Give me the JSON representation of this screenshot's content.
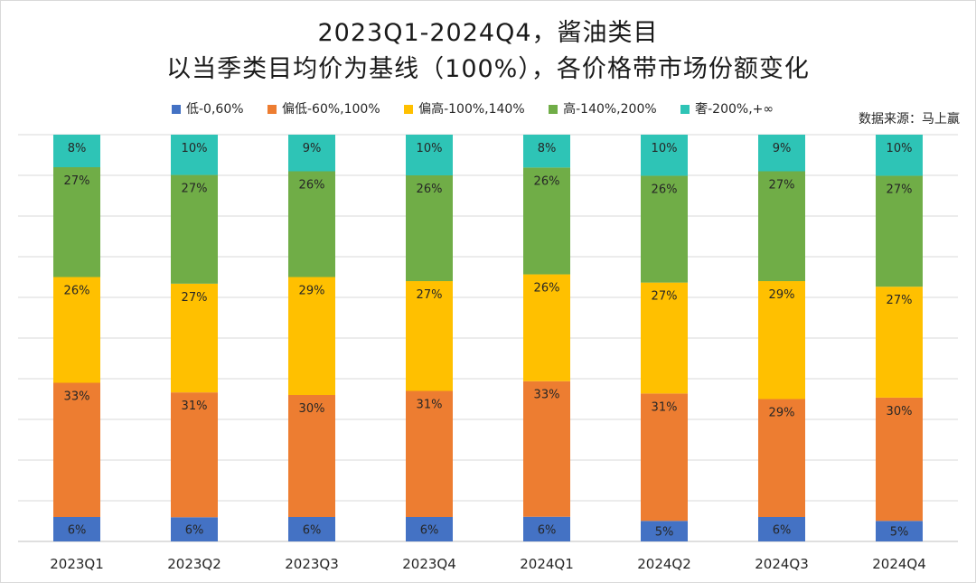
{
  "title": {
    "line1": "2023Q1-2024Q4，酱油类目",
    "line2": "以当季类目均价为基线（100%），各价格带市场份额变化"
  },
  "source": "数据来源：马上赢",
  "legend": [
    {
      "label": "低-0,60%",
      "color": "#4472C4"
    },
    {
      "label": "偏低-60%,100%",
      "color": "#ED7D31"
    },
    {
      "label": "偏高-100%,140%",
      "color": "#FFC000"
    },
    {
      "label": "高-140%,200%",
      "color": "#70AD47"
    },
    {
      "label": "奢-200%,+∞",
      "color": "#2EC4B6"
    }
  ],
  "chart_data": {
    "type": "bar",
    "stacked": true,
    "categories": [
      "2023Q1",
      "2023Q2",
      "2023Q3",
      "2023Q4",
      "2024Q1",
      "2024Q2",
      "2024Q3",
      "2024Q4"
    ],
    "ylim": [
      0,
      100
    ],
    "grid": true,
    "legend_position": "top",
    "series": [
      {
        "name": "低-0,60%",
        "color": "#4472C4",
        "values": [
          6,
          6,
          6,
          6,
          6,
          5,
          6,
          5
        ],
        "labels": [
          "6%",
          "6%",
          "6%",
          "6%",
          "6%",
          "5%",
          "6%",
          "5%"
        ]
      },
      {
        "name": "偏低-60%,100%",
        "color": "#ED7D31",
        "values": [
          33,
          31,
          30,
          31,
          33,
          31,
          29,
          30
        ],
        "labels": [
          "33%",
          "31%",
          "30%",
          "31%",
          "33%",
          "31%",
          "29%",
          "30%"
        ]
      },
      {
        "name": "偏高-100%,140%",
        "color": "#FFC000",
        "values": [
          26,
          27,
          29,
          27,
          26,
          27,
          29,
          27
        ],
        "labels": [
          "26%",
          "27%",
          "29%",
          "27%",
          "26%",
          "27%",
          "29%",
          "27%"
        ]
      },
      {
        "name": "高-140%,200%",
        "color": "#70AD47",
        "values": [
          27,
          27,
          26,
          26,
          26,
          26,
          27,
          27
        ],
        "labels": [
          "27%",
          "27%",
          "26%",
          "26%",
          "26%",
          "26%",
          "27%",
          "27%"
        ]
      },
      {
        "name": "奢-200%,+∞",
        "color": "#2EC4B6",
        "values": [
          8,
          10,
          9,
          10,
          8,
          10,
          9,
          10
        ],
        "labels": [
          "8%",
          "10%",
          "9%",
          "10%",
          "8%",
          "10%",
          "9%",
          "10%"
        ]
      }
    ]
  }
}
